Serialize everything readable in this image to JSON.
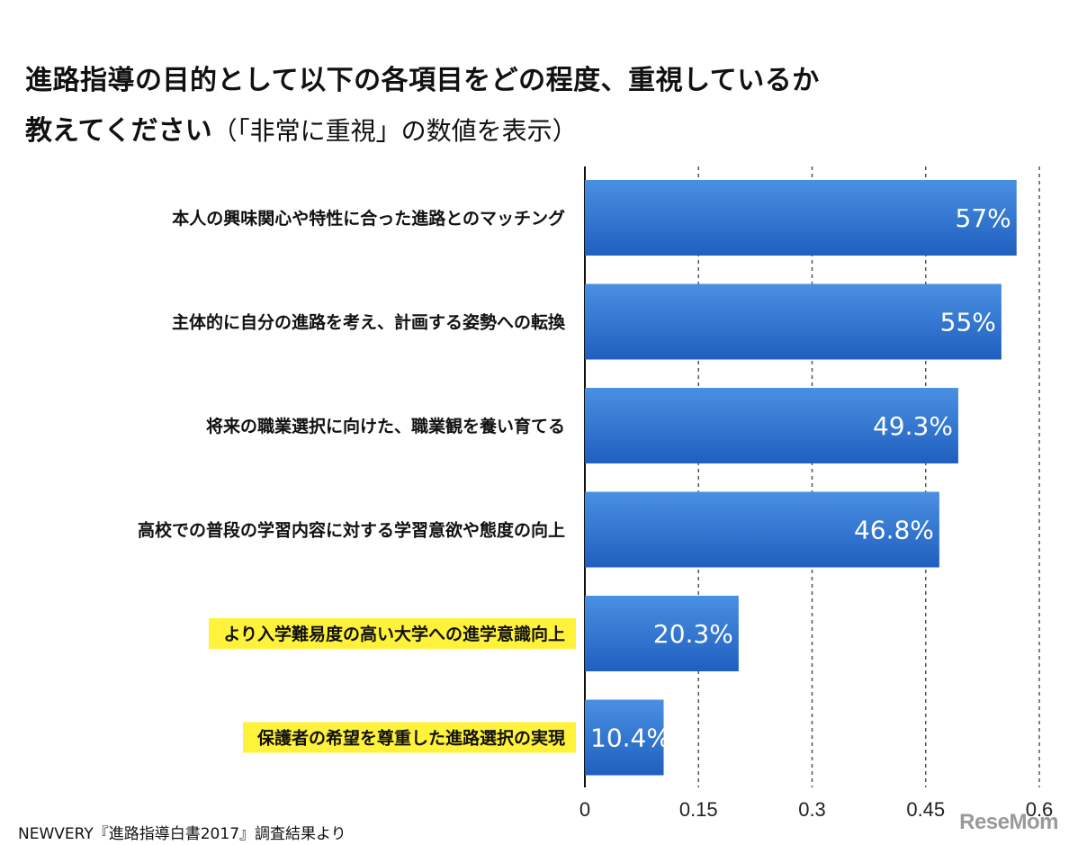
{
  "title": {
    "line1": "進路指導の目的として以下の各項目をどの程度、重視しているか",
    "line2_bold": "教えてください",
    "line2_note": "（「非常に重視」の数値を表示）"
  },
  "source": "NEWVERY『進路指導白書2017』調査結果より",
  "logo": "ReseMom",
  "colors": {
    "bar_top": "#4a90e2",
    "bar_bottom": "#1f5fbf",
    "highlight": "#fff23a"
  },
  "chart_data": {
    "type": "bar",
    "orientation": "horizontal",
    "categories": [
      "本人の興味関心や特性に合った進路とのマッチング",
      "主体的に自分の進路を考え、計画する姿勢への転換",
      "将来の職業選択に向けた、職業観を養い育てる",
      "高校での普段の学習内容に対する学習意欲や態度の向上",
      "より入学難易度の高い大学への進学意識向上",
      "保護者の希望を尊重した進路選択の実現"
    ],
    "values": [
      0.57,
      0.55,
      0.493,
      0.468,
      0.203,
      0.104
    ],
    "value_labels": [
      "57%",
      "55%",
      "49.3%",
      "46.8%",
      "20.3%",
      "10.4%"
    ],
    "highlighted": [
      false,
      false,
      false,
      false,
      true,
      true
    ],
    "xlim": [
      0,
      0.6
    ],
    "ticks": [
      0,
      0.15,
      0.3,
      0.45,
      0.6
    ],
    "tick_labels": [
      "0",
      "0.15",
      "0.3",
      "0.45",
      "0.6"
    ],
    "grid": true,
    "title": "進路指導の目的として以下の各項目をどの程度、重視しているか 教えてください（「非常に重視」の数値を表示）"
  }
}
